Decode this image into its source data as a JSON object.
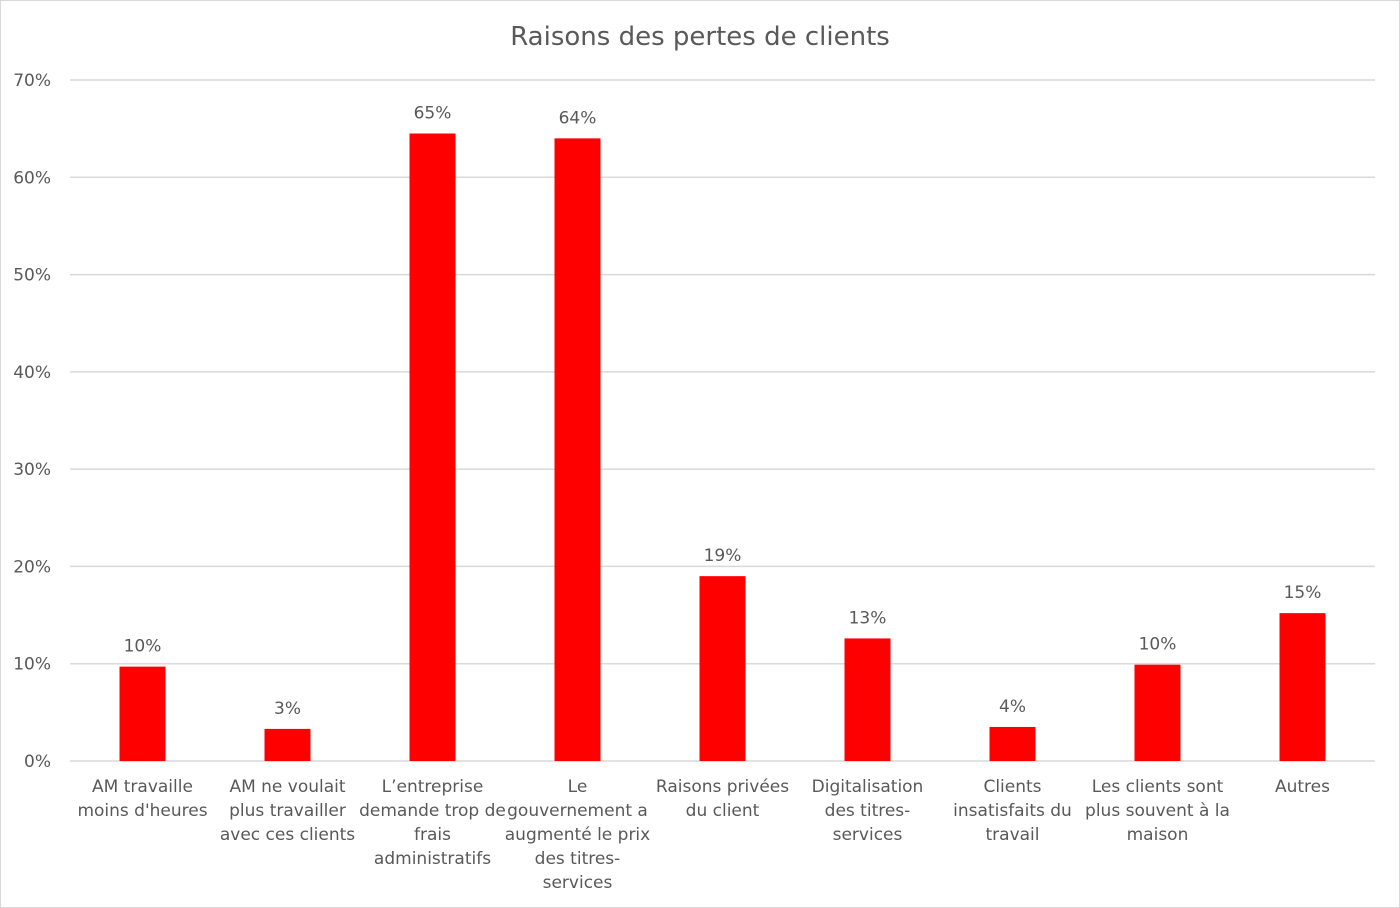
{
  "chart_data": {
    "type": "bar",
    "title": "Raisons des pertes de clients",
    "xlabel": "",
    "ylabel": "",
    "ylim": [
      0,
      70
    ],
    "yticks": [
      0,
      10,
      20,
      30,
      40,
      50,
      60,
      70
    ],
    "ytick_labels": [
      "0%",
      "10%",
      "20%",
      "30%",
      "40%",
      "50%",
      "60%",
      "70%"
    ],
    "grid": true,
    "legend": "none",
    "bar_color": "#FF0000",
    "categories": [
      [
        "AM travaille",
        "moins d'heures"
      ],
      [
        "AM ne voulait",
        "plus travailler",
        "avec ces clients"
      ],
      [
        "L’entreprise",
        "demande trop de",
        "frais",
        "administratifs"
      ],
      [
        "Le",
        "gouvernement a",
        "augmenté le prix",
        "des titres-",
        "services"
      ],
      [
        "Raisons privées",
        "du client"
      ],
      [
        "Digitalisation",
        "des titres-",
        "services"
      ],
      [
        "Clients",
        "insatisfaits du",
        "travail"
      ],
      [
        "Les clients sont",
        "plus souvent à la",
        "maison"
      ],
      [
        "Autres"
      ]
    ],
    "values": [
      9.7,
      3.3,
      64.5,
      64.0,
      19.0,
      12.6,
      3.5,
      9.9,
      15.2
    ],
    "data_labels": [
      "10%",
      "3%",
      "65%",
      "64%",
      "19%",
      "13%",
      "4%",
      "10%",
      "15%"
    ]
  }
}
